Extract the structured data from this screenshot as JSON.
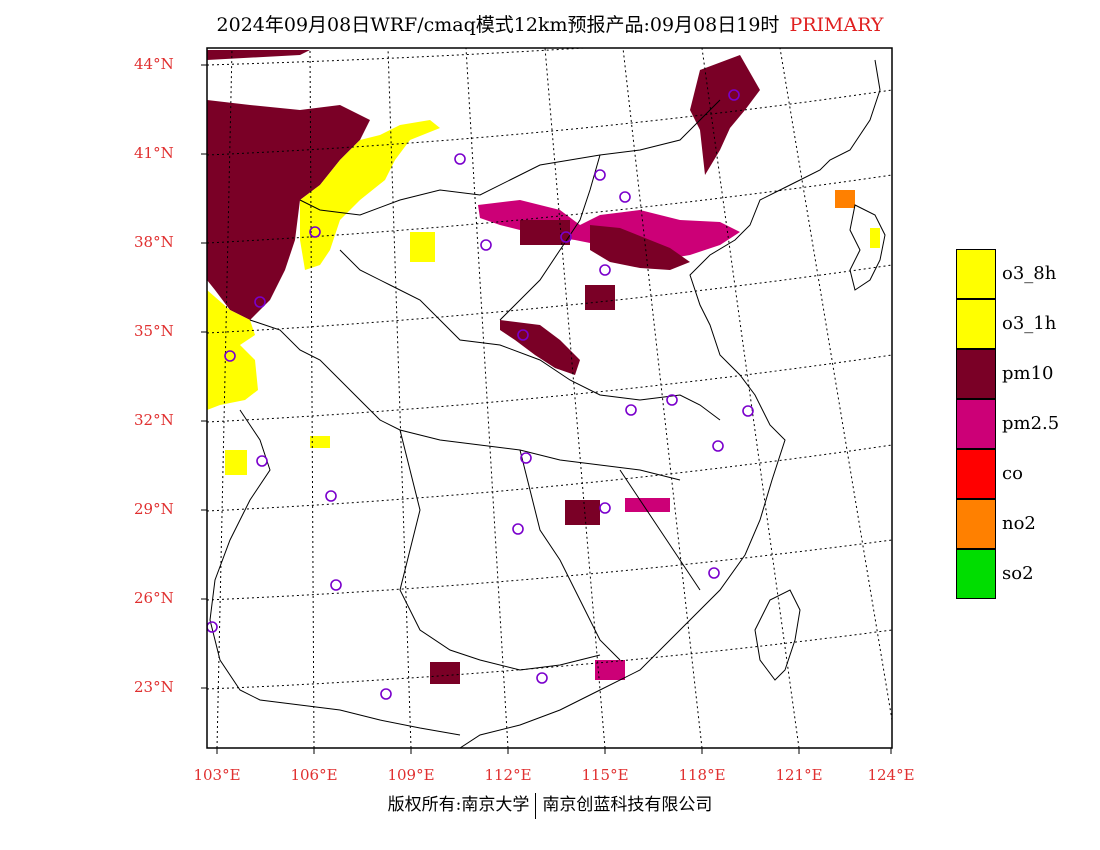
{
  "title": {
    "main": "2024年09月08日WRF/cmaq模式12km预报产品:09月08日19时",
    "tag": "PRIMARY"
  },
  "axes": {
    "lat_labels": [
      "44°N",
      "41°N",
      "38°N",
      "35°N",
      "32°N",
      "29°N",
      "26°N",
      "23°N"
    ],
    "lon_labels": [
      "103°E",
      "106°E",
      "109°E",
      "112°E",
      "115°E",
      "118°E",
      "121°E",
      "124°E"
    ]
  },
  "legend": [
    {
      "label": "o3_8h",
      "color": "#ffff00"
    },
    {
      "label": "o3_1h",
      "color": "#ffff00"
    },
    {
      "label": "pm10",
      "color": "#7a0026"
    },
    {
      "label": "pm2.5",
      "color": "#cc0077"
    },
    {
      "label": "co",
      "color": "#ff0000"
    },
    {
      "label": "no2",
      "color": "#ff8000"
    },
    {
      "label": "so2",
      "color": "#00dd00"
    }
  ],
  "colors": {
    "accent_red": "#e03030",
    "pm10": "#7a0026",
    "pm25": "#cc0077",
    "o3": "#ffff00",
    "no2": "#ff8000",
    "station": "#7a00cc"
  },
  "footer": {
    "left": "版权所有:南京大学",
    "right": "南京创蓝科技有限公司"
  }
}
